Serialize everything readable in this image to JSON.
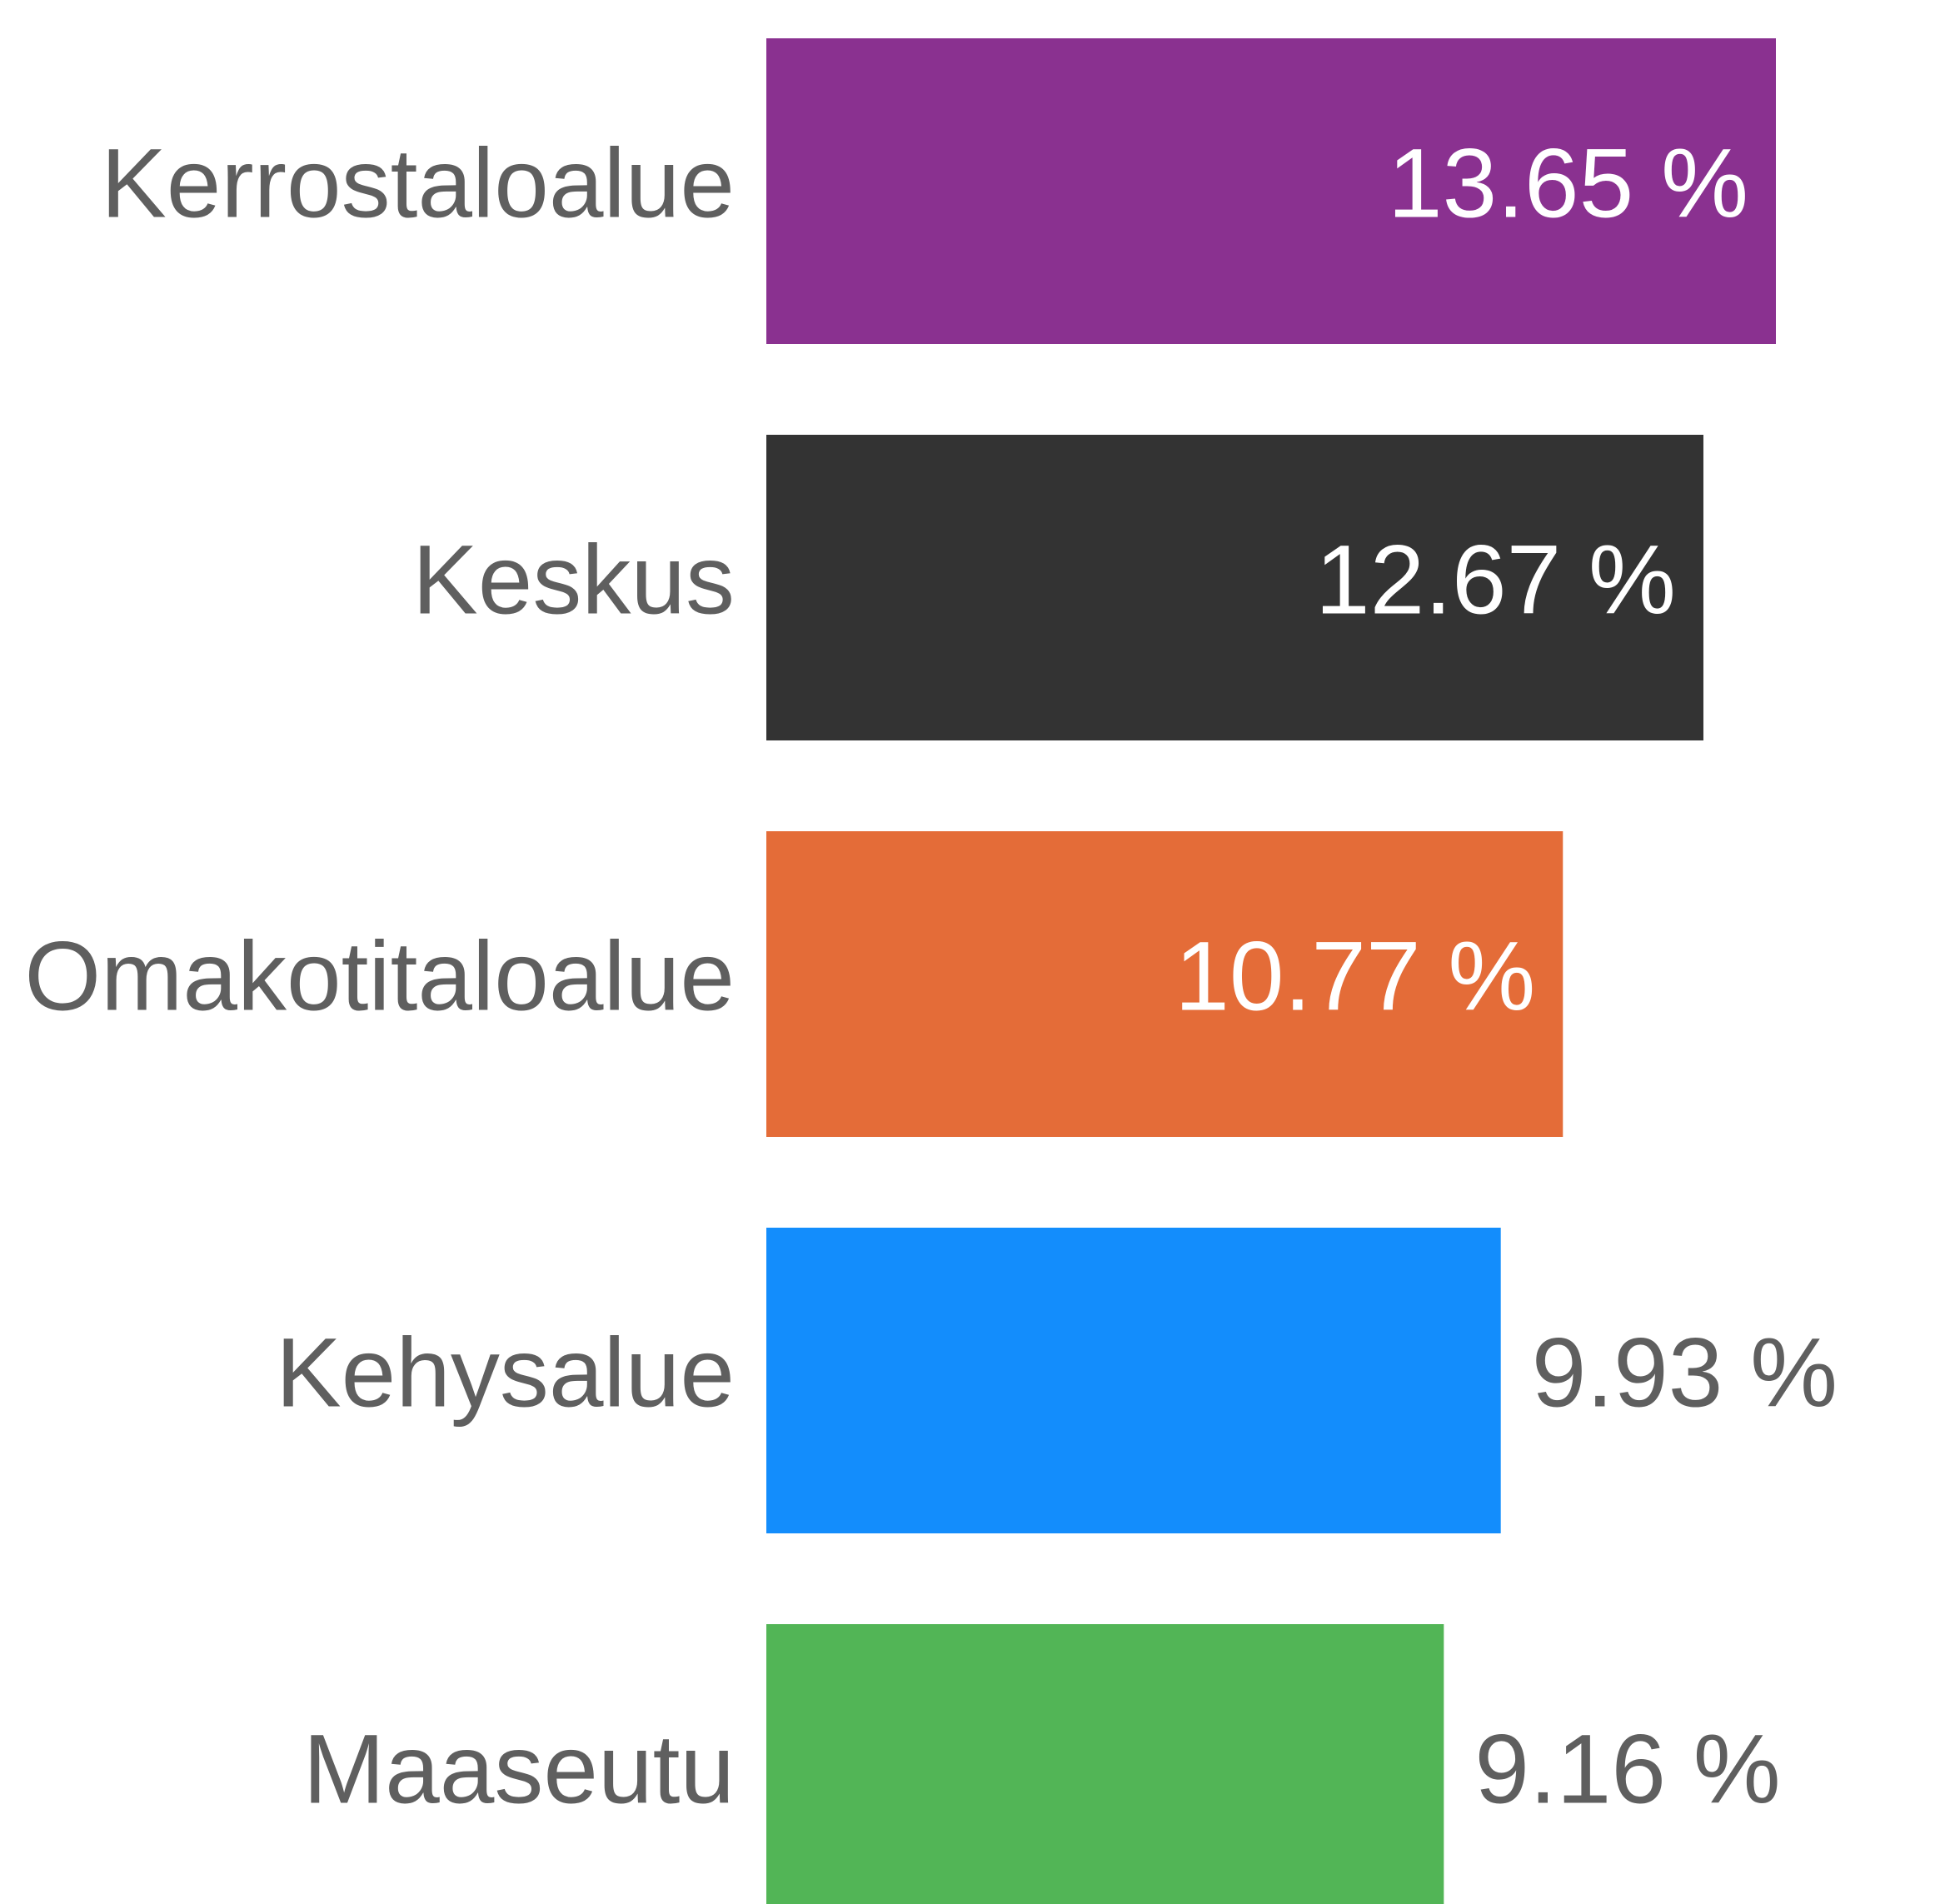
{
  "chart_data": {
    "type": "bar",
    "orientation": "horizontal",
    "categories": [
      "Kerrostaloalue",
      "Keskus",
      "Omakotitaloalue",
      "Kehysalue",
      "Maaseutu"
    ],
    "values": [
      13.65,
      12.67,
      10.77,
      9.93,
      9.16
    ],
    "value_labels": [
      "13.65 %",
      "12.67 %",
      "10.77 %",
      "9.93 %",
      "9.16 %"
    ],
    "colors": [
      "#8a3190",
      "#333333",
      "#e46c38",
      "#138dfc",
      "#52b556"
    ]
  }
}
